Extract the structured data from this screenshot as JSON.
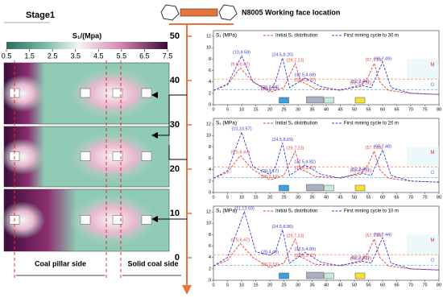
{
  "stage": "Stage1",
  "colorbar": {
    "title": "S₁/(Mpa)",
    "lim": [
      0.5,
      7.5
    ],
    "ticks": [
      0.5,
      1.5,
      2.5,
      3.5,
      4.5,
      5.5,
      6.5,
      7.5
    ]
  },
  "working_face": "N8005 Working face location",
  "location_axis": {
    "lim": [
      0,
      50
    ],
    "ticks": [
      0,
      10,
      20,
      30,
      40,
      50
    ]
  },
  "sides": [
    "Coal pillar side",
    "Solid coal side"
  ],
  "chart_data": [
    {
      "type": "line",
      "y_label": "S₁ (MPa)",
      "xlim": [
        0,
        80
      ],
      "xticks": [
        0,
        5,
        10,
        15,
        20,
        25,
        30,
        35,
        40,
        45,
        50,
        55,
        60,
        65,
        70,
        75,
        80
      ],
      "ylim": [
        0,
        13
      ],
      "yticks": [
        0,
        2,
        4,
        6,
        8,
        10,
        12
      ],
      "zones": [
        "M",
        "O"
      ],
      "series": [
        {
          "name": "Initial S₁ distribution",
          "color": "#e8403a",
          "x": [
            0,
            5,
            9.5,
            14,
            20,
            25,
            29,
            31,
            32.5,
            36,
            44,
            50,
            52.3,
            55,
            57,
            59,
            62,
            70,
            80
          ],
          "values": [
            2.5,
            3.5,
            6.47,
            4,
            2.19,
            3,
            7.23,
            4,
            3.77,
            2.8,
            2.6,
            3,
            3.22,
            5,
            7.25,
            4,
            2.5,
            2,
            1.8
          ],
          "value_labels": [
            null,
            null,
            "(9.5,6.47)",
            null,
            "(20,2.19)",
            null,
            "(29,7.23)",
            null,
            "(32.5,3.77)",
            null,
            null,
            null,
            "(52.3,3.22)",
            null,
            "(57,7.25)",
            null,
            null,
            null,
            null
          ]
        },
        {
          "name": "First mining cycle to 30 m",
          "color": "#3b3bd6",
          "x": [
            0,
            5,
            10,
            14,
            20,
            22,
            24.5,
            27,
            32.5,
            38,
            45,
            52,
            56,
            60,
            63,
            70,
            80
          ],
          "values": [
            2.5,
            3.6,
            8.58,
            4,
            2.44,
            4,
            8.2,
            3,
            4.68,
            3.2,
            2.5,
            3.44,
            3,
            7.49,
            3,
            2,
            1.8
          ],
          "value_labels": [
            null,
            null,
            "(10,8.58)",
            null,
            "(20,2.44)",
            null,
            "(24.5,8.20)",
            null,
            "(32.5,4.68)",
            null,
            null,
            "(52,3.44)",
            null,
            "(60,7.49)",
            null,
            null,
            null
          ]
        }
      ]
    },
    {
      "type": "line",
      "y_label": "S₁ (MPa)",
      "xlim": [
        0,
        80
      ],
      "xticks": [
        0,
        5,
        10,
        15,
        20,
        25,
        30,
        35,
        40,
        45,
        50,
        55,
        60,
        65,
        70,
        75,
        80
      ],
      "ylim": [
        0,
        13
      ],
      "yticks": [
        0,
        2,
        4,
        6,
        8,
        10,
        12
      ],
      "zones": [
        "M",
        "O"
      ],
      "series": [
        {
          "name": "Initial S₁ distribution",
          "color": "#e8403a",
          "x": [
            0,
            5,
            9.5,
            14,
            20,
            25,
            29,
            31,
            32.5,
            36,
            44,
            50,
            52.3,
            55,
            57,
            59,
            62,
            70,
            80
          ],
          "values": [
            2.5,
            3.5,
            6.47,
            4,
            2.19,
            3,
            7.23,
            4,
            3.77,
            2.8,
            2.6,
            3,
            3.22,
            5,
            7.25,
            4,
            2.5,
            2,
            1.8
          ],
          "value_labels": [
            null,
            null,
            "(9.5,6.47)",
            null,
            "(20,2.19)",
            null,
            "(29,7.23)",
            null,
            "(32.5,3.77)",
            null,
            null,
            null,
            "(52.3,3.22)",
            null,
            "(57,7.25)",
            null,
            null,
            null,
            null
          ]
        },
        {
          "name": "First mining cycle to 20 m",
          "color": "#3b3bd6",
          "x": [
            0,
            5,
            10,
            14,
            20,
            22,
            24.5,
            27,
            32.5,
            38,
            45,
            52,
            56,
            60,
            63,
            70,
            80
          ],
          "values": [
            2.5,
            3.8,
            10.57,
            4.5,
            3.17,
            4.5,
            8.69,
            3,
            4.81,
            3.2,
            2.5,
            3.45,
            3,
            7.48,
            3,
            2,
            1.8
          ],
          "value_labels": [
            null,
            null,
            "(10,10.57)",
            null,
            "(20,3.17)",
            null,
            "(24.5,8.69)",
            null,
            "(32.5,4.81)",
            null,
            null,
            "(52,3.45)",
            null,
            "(60,7.48)",
            null,
            null,
            null
          ]
        }
      ]
    },
    {
      "type": "line",
      "y_label": "S₁ (MPa)",
      "xlim": [
        0,
        80
      ],
      "xticks": [
        0,
        5,
        10,
        15,
        20,
        25,
        30,
        35,
        40,
        45,
        50,
        55,
        60,
        65,
        70,
        75,
        80
      ],
      "ylim": [
        0,
        13
      ],
      "yticks": [
        0,
        2,
        4,
        6,
        8,
        10,
        12
      ],
      "zones": [
        "M",
        "O"
      ],
      "series": [
        {
          "name": "Initial S₁ distribution",
          "color": "#e8403a",
          "x": [
            0,
            5,
            9.5,
            14,
            20,
            25,
            29,
            31,
            32.5,
            36,
            44,
            50,
            52.3,
            55,
            57,
            59,
            62,
            70,
            80
          ],
          "values": [
            2.5,
            3.5,
            6.47,
            4,
            2.19,
            3,
            7.23,
            4,
            3.77,
            2.8,
            2.6,
            3,
            3.22,
            5,
            7.25,
            4,
            2.5,
            2,
            1.8
          ],
          "value_labels": [
            null,
            null,
            "(9.5,6.47)",
            null,
            "(20,2.19)",
            null,
            "(29,7.23)",
            null,
            "(32.5,3.77)",
            null,
            null,
            null,
            "(52.3,3.22)",
            null,
            "(57,7.25)",
            null,
            null,
            null,
            null
          ]
        },
        {
          "name": "First mining cycle to 10 m",
          "color": "#3b3bd6",
          "x": [
            0,
            5,
            11,
            15,
            20,
            22,
            24.5,
            27,
            32.5,
            38,
            45,
            52,
            56,
            60,
            63,
            70,
            80
          ],
          "values": [
            2.5,
            4,
            12.03,
            5,
            4.4,
            5,
            8.86,
            3,
            4.89,
            3.2,
            2.5,
            3.42,
            3,
            7.44,
            3,
            2,
            1.8
          ],
          "value_labels": [
            null,
            null,
            "(11,12.03)",
            null,
            "(20,4.40)",
            null,
            "(24.5,8.86)",
            null,
            "(32.5,4.89)",
            null,
            null,
            "(52,3.42)",
            null,
            "(60,7.44)",
            null,
            null,
            null
          ]
        }
      ]
    }
  ]
}
